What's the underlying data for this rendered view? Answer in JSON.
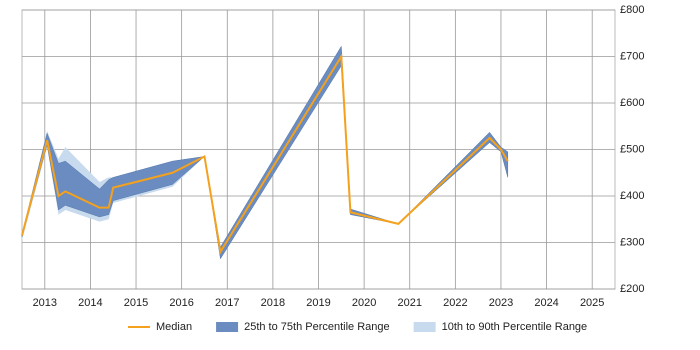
{
  "chart_data": {
    "type": "line",
    "x": [
      2012.5,
      2013.05,
      2013.3,
      2013.45,
      2014.2,
      2014.4,
      2014.5,
      2015.8,
      2016.5,
      2016.85,
      2019.5,
      2019.7,
      2020.75,
      2022.75,
      2023.0,
      2023.15
    ],
    "series": [
      {
        "name": "Median",
        "color": "#f4a11d",
        "values": [
          315,
          520,
          400,
          410,
          375,
          375,
          418,
          450,
          485,
          280,
          700,
          365,
          340,
          525,
          500,
          475
        ]
      },
      {
        "name": "25th to 75th Percentile Range",
        "color": "#6a8cc0",
        "lower": [
          312,
          510,
          370,
          380,
          355,
          360,
          390,
          425,
          485,
          265,
          680,
          360,
          340,
          515,
          495,
          440
        ],
        "upper": [
          318,
          535,
          470,
          475,
          415,
          435,
          440,
          475,
          485,
          290,
          722,
          372,
          340,
          537,
          505,
          495
        ]
      },
      {
        "name": "10th to 90th Percentile Range",
        "color": "#c8daee",
        "lower": [
          305,
          505,
          360,
          370,
          345,
          350,
          385,
          420,
          485,
          265,
          680,
          360,
          340,
          515,
          495,
          440
        ],
        "upper": [
          320,
          540,
          480,
          505,
          430,
          440,
          440,
          475,
          485,
          290,
          722,
          372,
          340,
          537,
          505,
          495
        ]
      }
    ],
    "xlim": [
      2012.5,
      2025.5
    ],
    "xticks": [
      2013,
      2014,
      2015,
      2016,
      2017,
      2018,
      2019,
      2020,
      2021,
      2022,
      2023,
      2024,
      2025
    ],
    "ylim": [
      200,
      800
    ],
    "yticks": [
      {
        "value": 200,
        "label": "£200"
      },
      {
        "value": 300,
        "label": "£300"
      },
      {
        "value": 400,
        "label": "£400"
      },
      {
        "value": 500,
        "label": "£500"
      },
      {
        "value": 600,
        "label": "£600"
      },
      {
        "value": 700,
        "label": "£700"
      },
      {
        "value": 800,
        "label": "£800"
      }
    ],
    "grid": true,
    "legend": "bottom"
  }
}
